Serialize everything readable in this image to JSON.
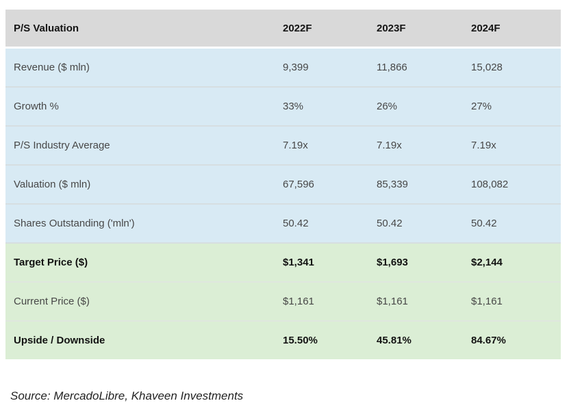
{
  "chart_data": {
    "type": "table",
    "title": "P/S Valuation",
    "columns": [
      "2022F",
      "2023F",
      "2024F"
    ],
    "rows": [
      {
        "label": "Revenue ($ mln)",
        "values": [
          "9,399",
          "11,866",
          "15,028"
        ],
        "style": "blue",
        "bold": false
      },
      {
        "label": "Growth %",
        "values": [
          "33%",
          "26%",
          "27%"
        ],
        "style": "blue",
        "bold": false
      },
      {
        "label": "P/S Industry Average",
        "values": [
          "7.19x",
          "7.19x",
          "7.19x"
        ],
        "style": "blue",
        "bold": false
      },
      {
        "label": "Valuation ($ mln)",
        "values": [
          "67,596",
          "85,339",
          "108,082"
        ],
        "style": "blue",
        "bold": false
      },
      {
        "label": "Shares Outstanding ('mln')",
        "values": [
          "50.42",
          "50.42",
          "50.42"
        ],
        "style": "blue",
        "bold": false
      },
      {
        "label": "Target Price ($)",
        "values": [
          "$1,341",
          "$1,693",
          "$2,144"
        ],
        "style": "green",
        "bold": true
      },
      {
        "label": "Current Price ($)",
        "values": [
          "$1,161",
          "$1,161",
          "$1,161"
        ],
        "style": "green",
        "bold": false
      },
      {
        "label": "Upside / Downside",
        "values": [
          "15.50%",
          "45.81%",
          "84.67%"
        ],
        "style": "green",
        "bold": true
      }
    ],
    "layout": {
      "column_alignment": "left",
      "grid": "horizontal-dividers"
    }
  },
  "source": "Source: MercadoLibre, Khaveen Investments",
  "colors": {
    "header_bg": "#d9d9d9",
    "blue_row_bg": "#d8eaf4",
    "green_row_bg": "#dbeed5",
    "bold_text": "#121212",
    "regular_text": "#474747"
  }
}
